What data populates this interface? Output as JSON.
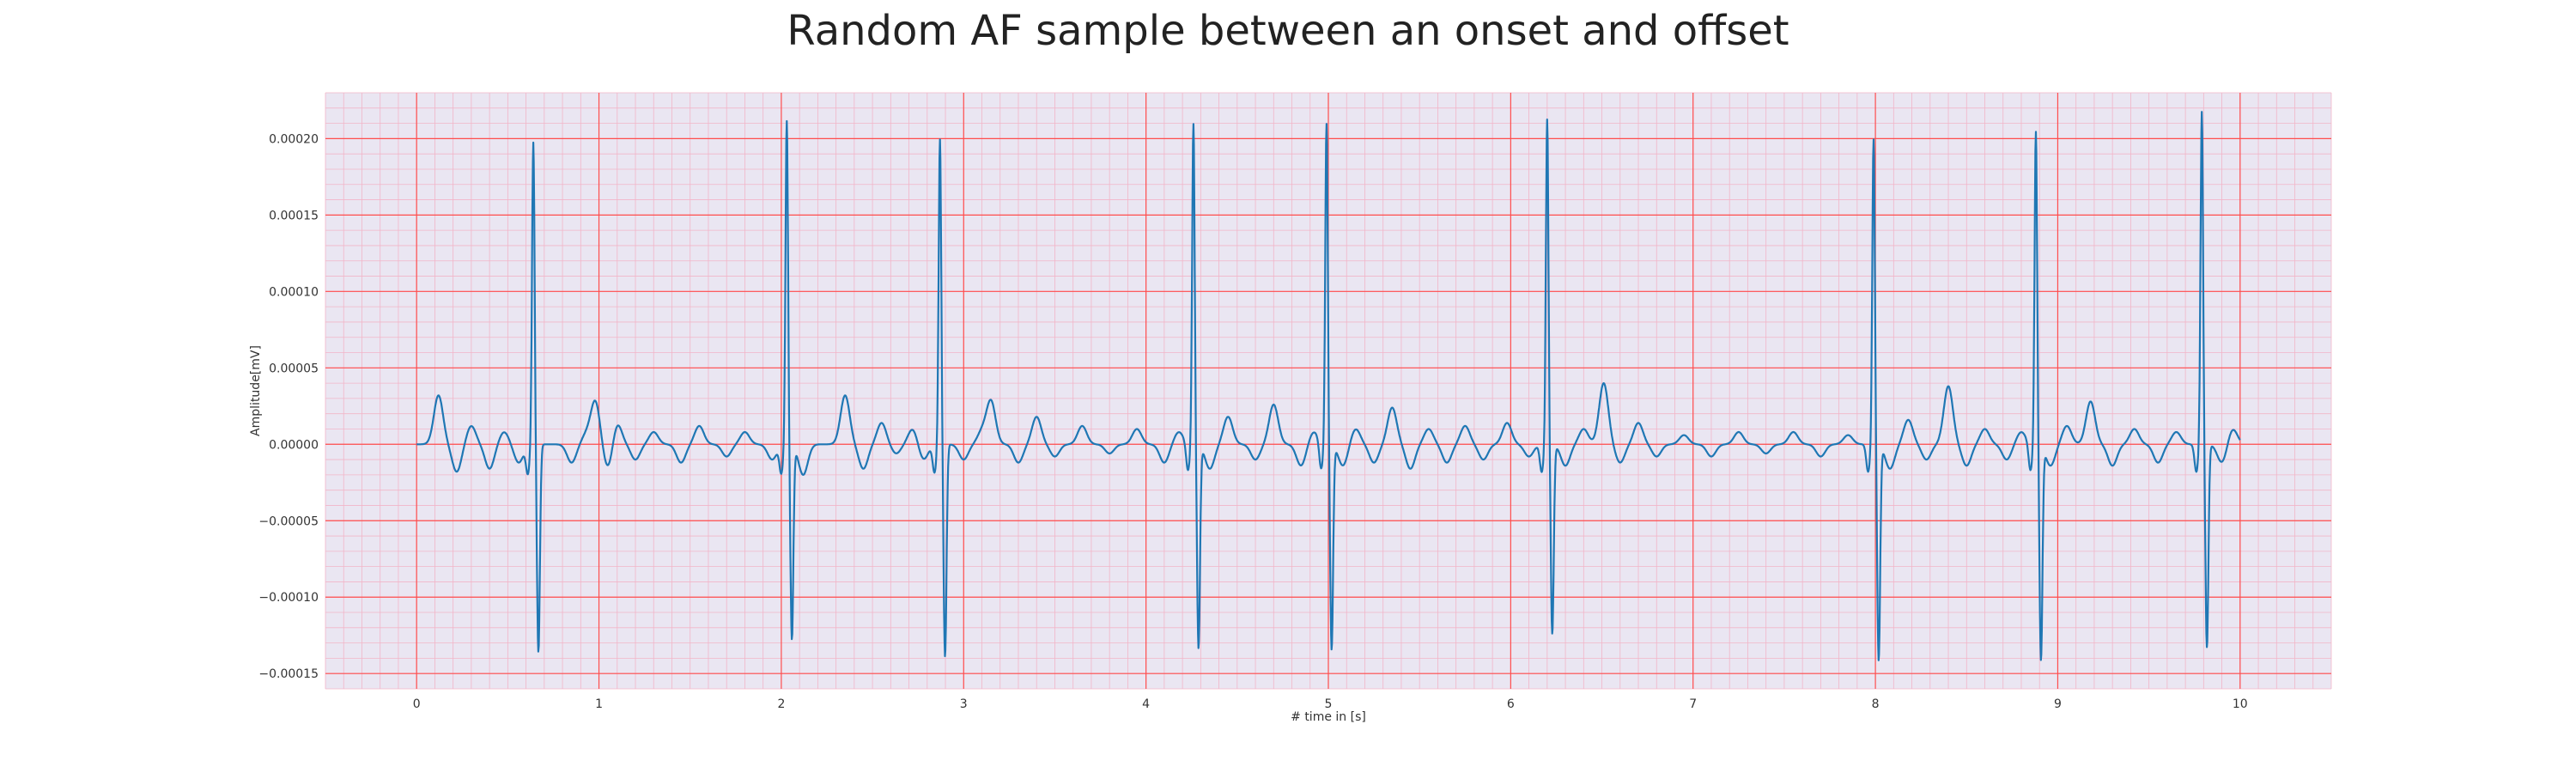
{
  "chart_data": {
    "type": "line",
    "title": "Random AF sample between an onset and offset",
    "xlabel": "# time in [s]",
    "ylabel": "Amplitude[mV]",
    "xlim": [
      -0.5,
      10.5
    ],
    "ylim": [
      -0.00016,
      0.00023
    ],
    "xticks": [
      0,
      1,
      2,
      3,
      4,
      5,
      6,
      7,
      8,
      9,
      10
    ],
    "xtick_labels": [
      "0",
      "1",
      "2",
      "3",
      "4",
      "5",
      "6",
      "7",
      "8",
      "9",
      "10"
    ],
    "yticks": [
      -0.00015,
      -0.0001,
      -5e-05,
      0.0,
      5e-05,
      0.0001,
      0.00015,
      0.0002
    ],
    "ytick_labels": [
      "−0.00015",
      "−0.00010",
      "−0.00005",
      "0.00000",
      "0.00005",
      "0.00010",
      "0.00015",
      "0.00020"
    ],
    "grid": true,
    "colors": {
      "plot_background": "#eae6f2",
      "major_grid": "#ff4d4d",
      "minor_grid": "#f2b5c8",
      "line": "#1f77b4"
    },
    "series": [
      {
        "r_peaks": [
          {
            "t": 0.64,
            "peak": 0.000198,
            "trough": -0.000136
          },
          {
            "t": 2.03,
            "peak": 0.000212,
            "trough": -0.000127
          },
          {
            "t": 2.87,
            "peak": 0.0002,
            "trough": -0.000139
          },
          {
            "t": 4.26,
            "peak": 0.00021,
            "trough": -0.000133
          },
          {
            "t": 4.99,
            "peak": 0.00021,
            "trough": -0.000134
          },
          {
            "t": 6.2,
            "peak": 0.000213,
            "trough": -0.000124
          },
          {
            "t": 7.99,
            "peak": 0.0002,
            "trough": -0.000141
          },
          {
            "t": 8.88,
            "peak": 0.000205,
            "trough": -0.00014
          },
          {
            "t": 9.79,
            "peak": 0.000218,
            "trough": -0.000133
          }
        ],
        "waves": [
          {
            "t": 0.12,
            "a": 3.2e-05
          },
          {
            "t": 0.22,
            "a": -1.8e-05
          },
          {
            "t": 0.3,
            "a": 1.2e-05
          },
          {
            "t": 0.4,
            "a": -1.6e-05
          },
          {
            "t": 0.48,
            "a": 8e-06
          },
          {
            "t": 0.56,
            "a": -1.2e-05
          },
          {
            "t": 0.85,
            "a": -1.2e-05
          },
          {
            "t": 0.93,
            "a": 6e-06
          },
          {
            "t": 0.98,
            "a": 2.8e-05
          },
          {
            "t": 1.05,
            "a": -1.6e-05
          },
          {
            "t": 1.1,
            "a": 1.4e-05
          },
          {
            "t": 1.2,
            "a": -1e-05
          },
          {
            "t": 1.3,
            "a": 8e-06
          },
          {
            "t": 1.45,
            "a": -1.2e-05
          },
          {
            "t": 1.55,
            "a": 1.2e-05
          },
          {
            "t": 1.7,
            "a": -8e-06
          },
          {
            "t": 1.8,
            "a": 8e-06
          },
          {
            "t": 1.95,
            "a": -1e-05
          },
          {
            "t": 2.12,
            "a": -2e-05
          },
          {
            "t": 2.35,
            "a": 3.2e-05
          },
          {
            "t": 2.45,
            "a": -1.6e-05
          },
          {
            "t": 2.55,
            "a": 1.4e-05
          },
          {
            "t": 2.63,
            "a": -6e-06
          },
          {
            "t": 2.72,
            "a": 1e-05
          },
          {
            "t": 2.78,
            "a": -1e-05
          },
          {
            "t": 3.0,
            "a": -1e-05
          },
          {
            "t": 3.1,
            "a": 8e-06
          },
          {
            "t": 3.15,
            "a": 2.8e-05
          },
          {
            "t": 3.3,
            "a": -1.2e-05
          },
          {
            "t": 3.4,
            "a": 1.8e-05
          },
          {
            "t": 3.5,
            "a": -8e-06
          },
          {
            "t": 3.65,
            "a": 1.2e-05
          },
          {
            "t": 3.8,
            "a": -6e-06
          },
          {
            "t": 3.95,
            "a": 1e-05
          },
          {
            "t": 4.1,
            "a": -1.2e-05
          },
          {
            "t": 4.18,
            "a": 8e-06
          },
          {
            "t": 4.35,
            "a": -1.6e-05
          },
          {
            "t": 4.45,
            "a": 1.8e-05
          },
          {
            "t": 4.6,
            "a": -1e-05
          },
          {
            "t": 4.7,
            "a": 2.6e-05
          },
          {
            "t": 4.85,
            "a": -1.4e-05
          },
          {
            "t": 4.92,
            "a": 8e-06
          },
          {
            "t": 5.08,
            "a": -1.4e-05
          },
          {
            "t": 5.15,
            "a": 1e-05
          },
          {
            "t": 5.25,
            "a": -1.2e-05
          },
          {
            "t": 5.35,
            "a": 2.4e-05
          },
          {
            "t": 5.45,
            "a": -1.6e-05
          },
          {
            "t": 5.55,
            "a": 1e-05
          },
          {
            "t": 5.65,
            "a": -1.2e-05
          },
          {
            "t": 5.75,
            "a": 1.2e-05
          },
          {
            "t": 5.85,
            "a": -1e-05
          },
          {
            "t": 5.98,
            "a": 1.4e-05
          },
          {
            "t": 6.1,
            "a": -8e-06
          },
          {
            "t": 6.3,
            "a": -1.4e-05
          },
          {
            "t": 6.4,
            "a": 1e-05
          },
          {
            "t": 6.51,
            "a": 4e-05
          },
          {
            "t": 6.6,
            "a": -1.2e-05
          },
          {
            "t": 6.7,
            "a": 1.4e-05
          },
          {
            "t": 6.8,
            "a": -8e-06
          },
          {
            "t": 6.95,
            "a": 6e-06
          },
          {
            "t": 7.1,
            "a": -8e-06
          },
          {
            "t": 7.25,
            "a": 8e-06
          },
          {
            "t": 7.4,
            "a": -6e-06
          },
          {
            "t": 7.55,
            "a": 8e-06
          },
          {
            "t": 7.7,
            "a": -8e-06
          },
          {
            "t": 7.85,
            "a": 6e-06
          },
          {
            "t": 8.08,
            "a": -1.6e-05
          },
          {
            "t": 8.18,
            "a": 1.6e-05
          },
          {
            "t": 8.28,
            "a": -1e-05
          },
          {
            "t": 8.4,
            "a": 3.8e-05
          },
          {
            "t": 8.5,
            "a": -1.4e-05
          },
          {
            "t": 8.6,
            "a": 1e-05
          },
          {
            "t": 8.72,
            "a": -1e-05
          },
          {
            "t": 8.8,
            "a": 8e-06
          },
          {
            "t": 8.96,
            "a": -1.4e-05
          },
          {
            "t": 9.05,
            "a": 1.2e-05
          },
          {
            "t": 9.18,
            "a": 2.8e-05
          },
          {
            "t": 9.3,
            "a": -1.4e-05
          },
          {
            "t": 9.42,
            "a": 1e-05
          },
          {
            "t": 9.55,
            "a": -1.2e-05
          },
          {
            "t": 9.65,
            "a": 8e-06
          },
          {
            "t": 9.9,
            "a": -1.2e-05
          },
          {
            "t": 9.96,
            "a": 1e-05
          }
        ]
      }
    ]
  }
}
